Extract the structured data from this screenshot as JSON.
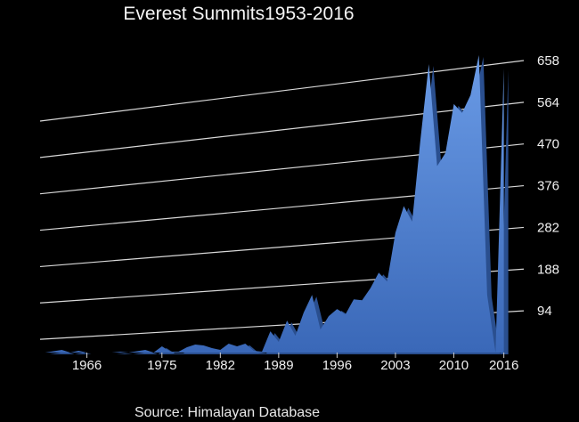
{
  "chart_data": {
    "type": "area",
    "title": "Everest Summits1953-2016",
    "source": "Source: Himalayan Database",
    "xlabel": "",
    "ylabel": "",
    "x_tick_labels": [
      "1966",
      "1975",
      "1982",
      "1989",
      "1996",
      "2003",
      "2010",
      "2016"
    ],
    "x_ticks": [
      1966,
      1975,
      1982,
      1989,
      1996,
      2003,
      2010,
      2016
    ],
    "y_tick_labels": [
      "94",
      "188",
      "282",
      "376",
      "470",
      "564",
      "658"
    ],
    "y_ticks": [
      94,
      188,
      282,
      376,
      470,
      564,
      658
    ],
    "xlim": [
      1959,
      2017
    ],
    "ylim": [
      0,
      658
    ],
    "grid": true,
    "legend": "none",
    "colors": {
      "area": "#3f73c8",
      "area_top": "#6a9be6",
      "edge": "#2a4f8f",
      "grid": "#d8d8d8",
      "background": "#000000"
    },
    "series": [
      {
        "x": [
          1959,
          1960,
          1961,
          1962,
          1963,
          1964,
          1965,
          1966,
          1967,
          1968,
          1969,
          1970,
          1971,
          1972,
          1973,
          1974,
          1975,
          1976,
          1977,
          1978,
          1979,
          1980,
          1981,
          1982,
          1983,
          1984,
          1985,
          1986,
          1987,
          1988,
          1989,
          1990,
          1991,
          1992,
          1993,
          1994,
          1995,
          1996,
          1997,
          1998,
          1999,
          2000,
          2001,
          2002,
          2003,
          2004,
          2005,
          2006,
          2007,
          2008,
          2009,
          2010,
          2011,
          2012,
          2013,
          2014,
          2015,
          2016
        ],
        "y": [
          0,
          0,
          0,
          3,
          6,
          0,
          4,
          0,
          0,
          0,
          0,
          2,
          0,
          3,
          6,
          0,
          14,
          2,
          2,
          12,
          18,
          16,
          10,
          6,
          20,
          14,
          20,
          4,
          2,
          48,
          24,
          72,
          38,
          90,
          130,
          52,
          82,
          98,
          86,
          120,
          118,
          145,
          180,
          160,
          270,
          330,
          295,
          480,
          650,
          420,
          450,
          560,
          540,
          580,
          670,
          130,
          0,
          640
        ]
      }
    ]
  }
}
